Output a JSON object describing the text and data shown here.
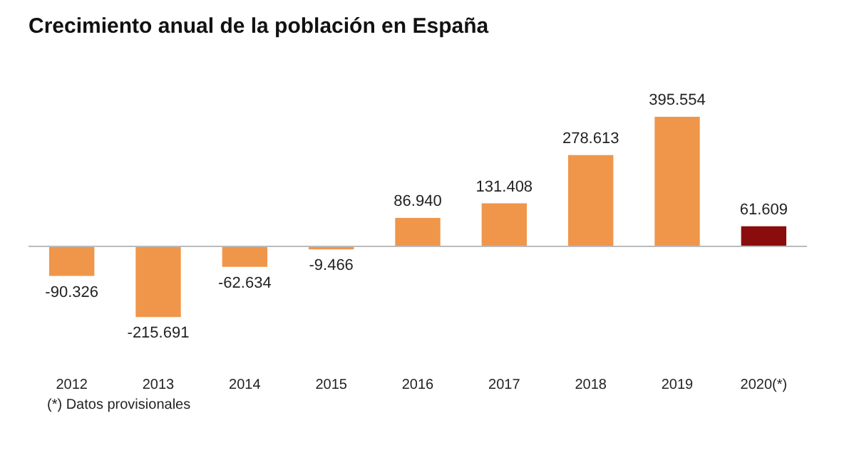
{
  "chart_data": {
    "type": "bar",
    "title": "Crecimiento anual de la población en España",
    "categories": [
      "2012",
      "2013",
      "2014",
      "2015",
      "2016",
      "2017",
      "2018",
      "2019",
      "2020(*)"
    ],
    "values": [
      -90326,
      -215691,
      -62634,
      -9466,
      86940,
      131408,
      278613,
      395554,
      61609
    ],
    "value_labels": [
      "-90.326",
      "-215.691",
      "-62.634",
      "-9.466",
      "86.940",
      "131.408",
      "278.613",
      "395.554",
      "61.609"
    ],
    "colors": [
      "#f0964b",
      "#f0964b",
      "#f0964b",
      "#f0964b",
      "#f0964b",
      "#f0964b",
      "#f0964b",
      "#f0964b",
      "#8b0c0c"
    ],
    "annotations": [
      "(*) Datos provisionales"
    ],
    "legend": false,
    "grid": false
  }
}
